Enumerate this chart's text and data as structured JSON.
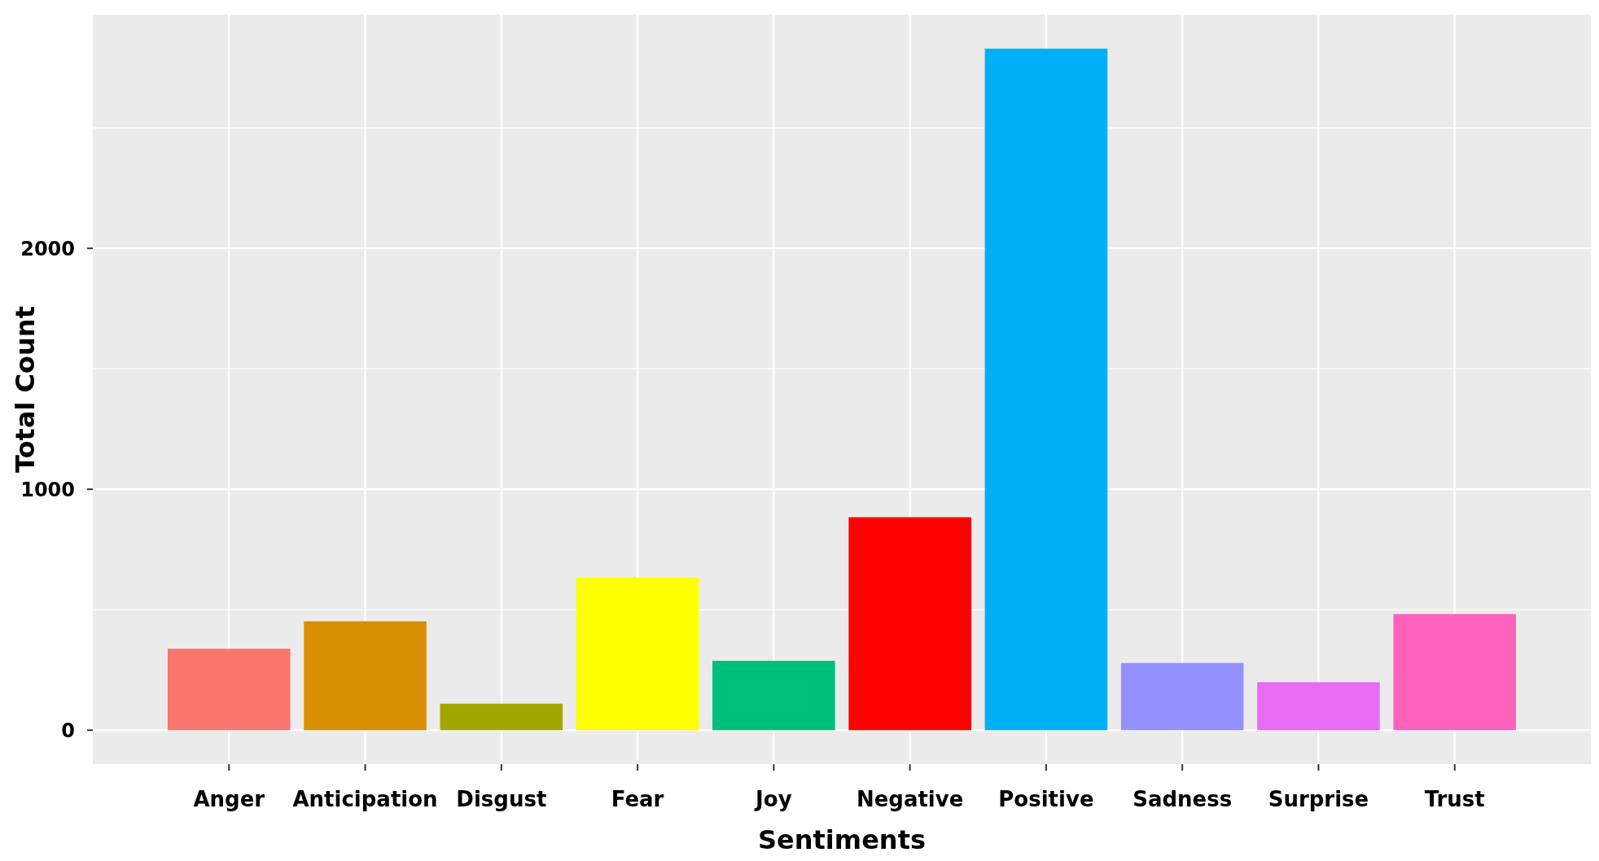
{
  "chart_data": {
    "type": "bar",
    "xlabel": "Sentiments",
    "ylabel": "Total Count",
    "categories": [
      "Anger",
      "Anticipation",
      "Disgust",
      "Fear",
      "Joy",
      "Negative",
      "Positive",
      "Sadness",
      "Surprise",
      "Trust"
    ],
    "values": [
      338,
      452,
      110,
      634,
      288,
      884,
      2829,
      279,
      199,
      482
    ],
    "colors": [
      "#f8766d",
      "#d89000",
      "#a3a500",
      "#ffff00",
      "#00bf7d",
      "#ff0000",
      "#00b0f6",
      "#9590ff",
      "#e76bf3",
      "#ff62bc"
    ],
    "ylim": [
      -141,
      2970
    ],
    "yticks": [
      0,
      {
        "value": 500,
        "label": null
      },
      1000,
      {
        "value": 1500,
        "label": null
      },
      2000,
      {
        "value": 2500,
        "label": null
      }
    ],
    "grid": true
  }
}
